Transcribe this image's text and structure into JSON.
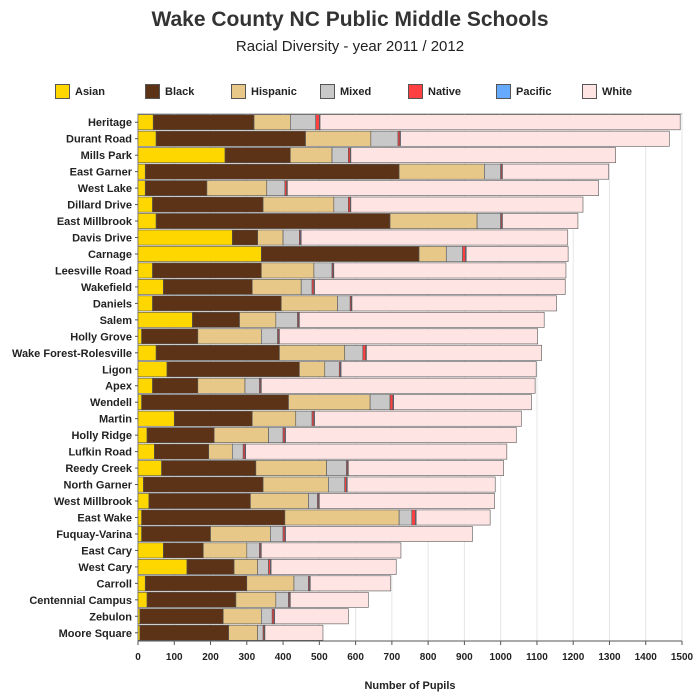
{
  "chart_data": {
    "type": "bar",
    "orientation": "horizontal",
    "stacked": true,
    "title": "Wake County NC Public Middle Schools",
    "subtitle": "Racial Diversity - year 2011 / 2012",
    "xlabel": "Number of Pupils",
    "ylabel": "",
    "xlim": [
      0,
      1500
    ],
    "xticks": [
      0,
      100,
      200,
      300,
      400,
      500,
      600,
      700,
      800,
      900,
      1000,
      1100,
      1200,
      1300,
      1400,
      1500
    ],
    "grid": true,
    "legend_position": "top",
    "categories": [
      "Heritage",
      "Durant Road",
      "Mills Park",
      "East Garner",
      "West Lake",
      "Dillard Drive",
      "East Millbrook",
      "Davis Drive",
      "Carnage",
      "Leesville Road",
      "Wakefield",
      "Daniels",
      "Salem",
      "Holly Grove",
      "Wake Forest-Rolesville",
      "Ligon",
      "Apex",
      "Wendell",
      "Martin",
      "Holly Ridge",
      "Lufkin Road",
      "Reedy Creek",
      "North Garner",
      "West Millbrook",
      "East Wake",
      "Fuquay-Varina",
      "East Cary",
      "West Cary",
      "Carroll",
      "Centennial Campus",
      "Zebulon",
      "Moore Square"
    ],
    "series": [
      {
        "name": "Asian",
        "color": "#ffd700",
        "values": [
          42,
          50,
          240,
          20,
          20,
          40,
          50,
          260,
          340,
          40,
          70,
          40,
          150,
          10,
          50,
          80,
          40,
          10,
          100,
          25,
          45,
          65,
          15,
          30,
          10,
          10,
          70,
          135,
          20,
          25,
          5,
          5
        ]
      },
      {
        "name": "Black",
        "color": "#5c3317",
        "values": [
          278,
          412,
          180,
          700,
          170,
          305,
          645,
          70,
          435,
          300,
          245,
          355,
          130,
          155,
          340,
          365,
          125,
          405,
          215,
          185,
          150,
          260,
          330,
          280,
          395,
          190,
          110,
          130,
          280,
          245,
          230,
          245
        ]
      },
      {
        "name": "Hispanic",
        "color": "#e8c888",
        "values": [
          100,
          180,
          115,
          235,
          165,
          195,
          240,
          70,
          75,
          145,
          135,
          155,
          100,
          175,
          180,
          70,
          130,
          225,
          120,
          150,
          65,
          195,
          180,
          160,
          315,
          165,
          120,
          65,
          130,
          110,
          105,
          80
        ]
      },
      {
        "name": "Mixed",
        "color": "#c8c8c8",
        "values": [
          70,
          75,
          45,
          45,
          50,
          40,
          65,
          45,
          45,
          50,
          30,
          35,
          60,
          45,
          50,
          40,
          40,
          55,
          45,
          40,
          30,
          55,
          45,
          25,
          35,
          35,
          35,
          30,
          40,
          35,
          30,
          15
        ]
      },
      {
        "name": "Native",
        "color": "#ff4040",
        "values": [
          10,
          5,
          5,
          3,
          5,
          5,
          3,
          3,
          8,
          3,
          5,
          3,
          3,
          3,
          8,
          3,
          3,
          8,
          5,
          5,
          5,
          3,
          5,
          3,
          10,
          5,
          3,
          5,
          3,
          3,
          5,
          3
        ]
      },
      {
        "name": "Pacific",
        "color": "#66aaff",
        "values": [
          2,
          2,
          2,
          2,
          2,
          2,
          2,
          2,
          2,
          2,
          2,
          2,
          2,
          2,
          2,
          2,
          2,
          2,
          2,
          2,
          2,
          2,
          2,
          2,
          2,
          2,
          2,
          2,
          2,
          2,
          2,
          2
        ]
      },
      {
        "name": "White",
        "color": "#ffe4e4",
        "values": [
          993,
          741,
          730,
          293,
          858,
          640,
          208,
          735,
          281,
          640,
          691,
          564,
          675,
          712,
          483,
          538,
          755,
          380,
          570,
          636,
          720,
          428,
          408,
          483,
          204,
          515,
          385,
          345,
          222,
          215,
          203,
          160
        ]
      }
    ]
  }
}
